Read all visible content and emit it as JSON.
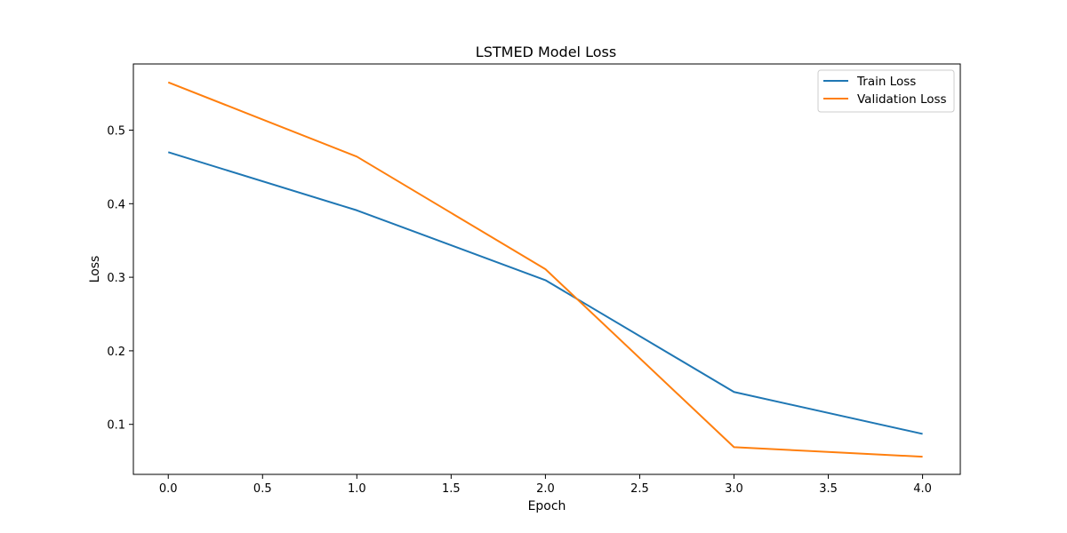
{
  "chart_data": {
    "type": "line",
    "title": "LSTMED Model Loss",
    "xlabel": "Epoch",
    "ylabel": "Loss",
    "x": [
      0,
      1,
      2,
      3,
      4
    ],
    "series": [
      {
        "name": "Train Loss",
        "color": "#1f77b4",
        "values": [
          0.47,
          0.391,
          0.296,
          0.144,
          0.087
        ]
      },
      {
        "name": "Validation Loss",
        "color": "#ff7f0e",
        "values": [
          0.565,
          0.464,
          0.311,
          0.069,
          0.056
        ]
      }
    ],
    "xlim": [
      -0.185,
      4.2
    ],
    "ylim": [
      0.032,
      0.59
    ],
    "xticks": [
      0.0,
      0.5,
      1.0,
      1.5,
      2.0,
      2.5,
      3.0,
      3.5,
      4.0
    ],
    "xtick_labels": [
      "0.0",
      "0.5",
      "1.0",
      "1.5",
      "2.0",
      "2.5",
      "3.0",
      "3.5",
      "4.0"
    ],
    "yticks": [
      0.1,
      0.2,
      0.3,
      0.4,
      0.5
    ],
    "ytick_labels": [
      "0.1",
      "0.2",
      "0.3",
      "0.4",
      "0.5"
    ],
    "grid": false,
    "legend_position": "top-right"
  }
}
